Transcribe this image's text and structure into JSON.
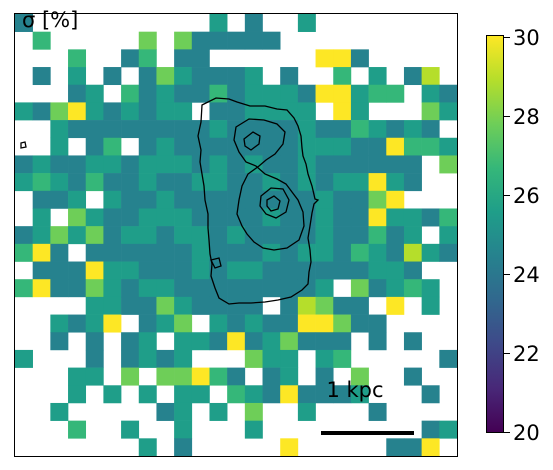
{
  "chart_data": {
    "type": "heatmap",
    "title": "",
    "map_label": "σ [%]",
    "colorbar": {
      "colormap": "viridis",
      "range": [
        20,
        30
      ],
      "ticks": [
        "20",
        "22",
        "24",
        "26",
        "28",
        "30"
      ]
    },
    "scalebar": {
      "label": "1 kpc"
    },
    "grid_size": [
      25,
      25
    ],
    "dominant_value": 24.7,
    "features": {
      "contour_color": "#000000",
      "saturated_color": "#fde725",
      "high_color": "#3fbc73",
      "typical_color": "#2a788e"
    }
  }
}
